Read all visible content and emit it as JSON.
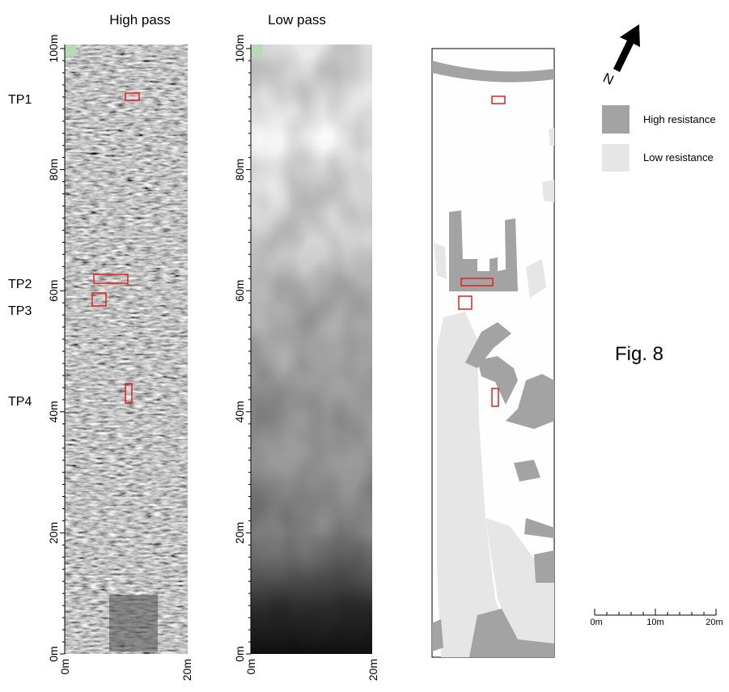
{
  "panels": [
    {
      "title": "High pass",
      "y_ticks": [
        "100m",
        "80m",
        "60m",
        "40m",
        "20m",
        "0m"
      ],
      "x_ticks": [
        "0m",
        "20m"
      ]
    },
    {
      "title": "Low pass",
      "y_ticks": [
        "100m",
        "80m",
        "60m",
        "40m",
        "20m",
        "0m"
      ],
      "x_ticks": [
        "0m",
        "20m"
      ]
    }
  ],
  "test_pits": [
    "TP1",
    "TP2",
    "TP3",
    "TP4"
  ],
  "north": "N",
  "legend": [
    {
      "label": "High resistance"
    },
    {
      "label": "Low resistance"
    }
  ],
  "figure_label": "Fig. 8",
  "scale_bar": [
    "0m",
    "10m",
    "20m"
  ]
}
